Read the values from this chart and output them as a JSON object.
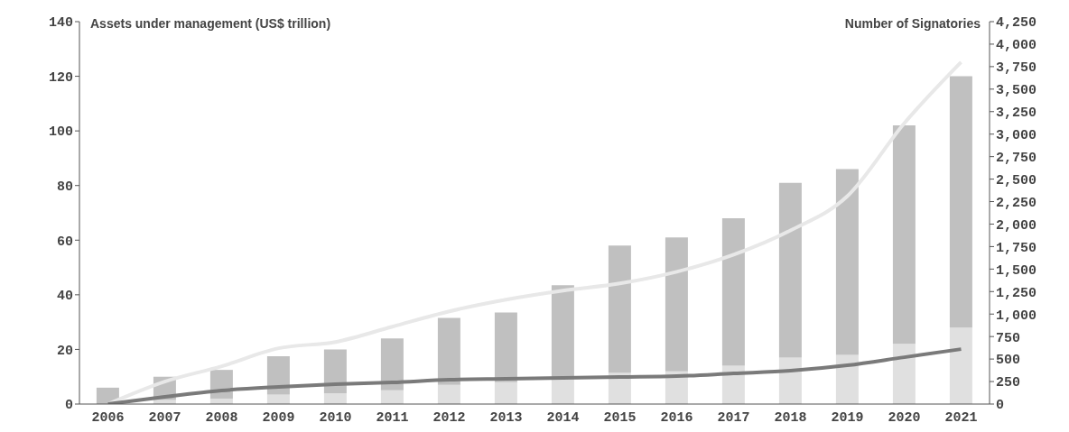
{
  "chart_data": {
    "type": "bar",
    "stacked": true,
    "ylabel": "Assets under management (US$ trillion)",
    "y2label": "Number of Signatories",
    "categories": [
      "2006",
      "2007",
      "2008",
      "2009",
      "2010",
      "2011",
      "2012",
      "2013",
      "2014",
      "2015",
      "2016",
      "2017",
      "2018",
      "2019",
      "2020",
      "2021"
    ],
    "series": [
      {
        "color": "#e0e0e0",
        "values": [
          null,
          1.5,
          2,
          3.5,
          4,
          5,
          7,
          8,
          9.5,
          11.5,
          12,
          14,
          17,
          18,
          22,
          28
        ]
      },
      {
        "color": "#c0c0c0",
        "values": [
          6,
          8.5,
          10.5,
          14,
          16,
          19,
          24.5,
          25.5,
          34,
          46.5,
          49,
          54,
          64,
          68,
          80,
          92
        ]
      },
      {
        "type": "line",
        "axis": "y2",
        "color": "#e8e8e8",
        "values": [
          0,
          250,
          420,
          620,
          690,
          860,
          1030,
          1160,
          1260,
          1340,
          1470,
          1660,
          1930,
          2310,
          3120,
          3800
        ]
      },
      {
        "type": "line",
        "axis": "y2",
        "color": "#7a7a7a",
        "values": [
          0,
          80,
          150,
          190,
          220,
          240,
          270,
          280,
          290,
          300,
          310,
          340,
          370,
          430,
          520,
          610
        ]
      }
    ],
    "ylim": [
      0,
      140
    ],
    "yticks": [
      0,
      20,
      40,
      60,
      80,
      100,
      120,
      140
    ],
    "y2lim": [
      0,
      4250
    ],
    "y2ticks": [
      0,
      250,
      500,
      750,
      {
        "value": 1000,
        "label": "1,000"
      },
      {
        "value": 1250,
        "label": "1,250"
      },
      {
        "value": 1500,
        "label": "1,500"
      },
      {
        "value": 1750,
        "label": "1,750"
      },
      {
        "value": 2000,
        "label": "2,000"
      },
      {
        "value": 2250,
        "label": "2,250"
      },
      {
        "value": 2500,
        "label": "2,500"
      },
      {
        "value": 2750,
        "label": "2,750"
      },
      {
        "value": 3000,
        "label": "3,000"
      },
      {
        "value": 3250,
        "label": "3,250"
      },
      {
        "value": 3500,
        "label": "3,500"
      },
      {
        "value": 3750,
        "label": "3,750"
      },
      {
        "value": 4000,
        "label": "4,000"
      },
      {
        "value": 4250,
        "label": "4,250"
      }
    ],
    "grid": false,
    "legend": false,
    "marker": "none",
    "line_style": "solid"
  }
}
